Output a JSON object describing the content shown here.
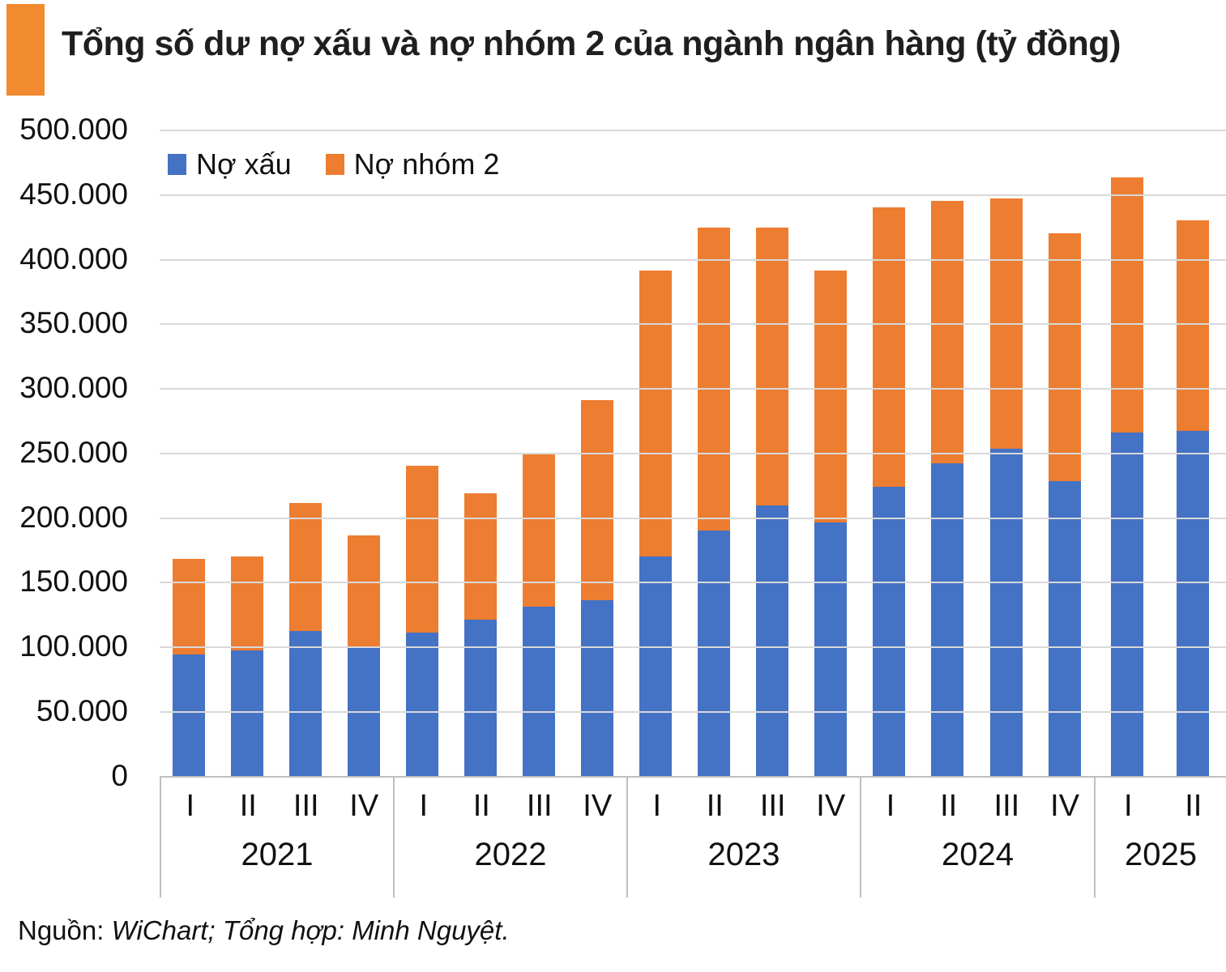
{
  "header": {
    "title": "Tổng số dư nợ xấu và nợ nhóm 2 của ngành ngân hàng (tỷ đồng)",
    "accent_color": "#F28A30"
  },
  "colors": {
    "no_xau": "#4472C4",
    "no_nhom_2": "#ED7D31",
    "gridline": "#d9d9d9",
    "axis_line": "#bfbfbf"
  },
  "chart_data": {
    "type": "bar",
    "stacked": true,
    "title": "Tổng số dư nợ xấu và nợ nhóm 2 của ngành ngân hàng (tỷ đồng)",
    "unit": "tỷ đồng",
    "ylim": [
      0,
      500000
    ],
    "ytick_step": 50000,
    "ytick_labels": [
      "500.000",
      "450.000",
      "400.000",
      "350.000",
      "300.000",
      "250.000",
      "200.000",
      "150.000",
      "100.000",
      "50.000",
      "0"
    ],
    "grid": true,
    "legend_position": "top-left-inside",
    "groups": [
      {
        "year": "2021",
        "quarters": [
          "I",
          "II",
          "III",
          "IV"
        ]
      },
      {
        "year": "2022",
        "quarters": [
          "I",
          "II",
          "III",
          "IV"
        ]
      },
      {
        "year": "2023",
        "quarters": [
          "I",
          "II",
          "III",
          "IV"
        ]
      },
      {
        "year": "2024",
        "quarters": [
          "I",
          "II",
          "III",
          "IV"
        ]
      },
      {
        "year": "2025",
        "quarters": [
          "I",
          "II"
        ]
      }
    ],
    "categories": [
      "2021-I",
      "2021-II",
      "2021-III",
      "2021-IV",
      "2022-I",
      "2022-II",
      "2022-III",
      "2022-IV",
      "2023-I",
      "2023-II",
      "2023-III",
      "2023-IV",
      "2024-I",
      "2024-II",
      "2024-III",
      "2024-IV",
      "2025-I",
      "2025-II"
    ],
    "series": [
      {
        "name": "Nợ xấu",
        "color": "#4472C4",
        "values": [
          94000,
          97000,
          112000,
          99000,
          111000,
          121000,
          131000,
          136000,
          170000,
          190000,
          209000,
          196000,
          224000,
          242000,
          253000,
          228000,
          266000,
          267000
        ]
      },
      {
        "name": "Nợ nhóm 2",
        "color": "#ED7D31",
        "values": [
          74000,
          73000,
          99000,
          87000,
          129000,
          98000,
          119000,
          155000,
          221000,
          234000,
          215000,
          195000,
          216000,
          203000,
          194000,
          192000,
          197000,
          163000
        ]
      }
    ]
  },
  "source": {
    "prefix": "Nguồn: ",
    "detail": "WiChart; Tổng hợp: Minh Nguyệt."
  }
}
